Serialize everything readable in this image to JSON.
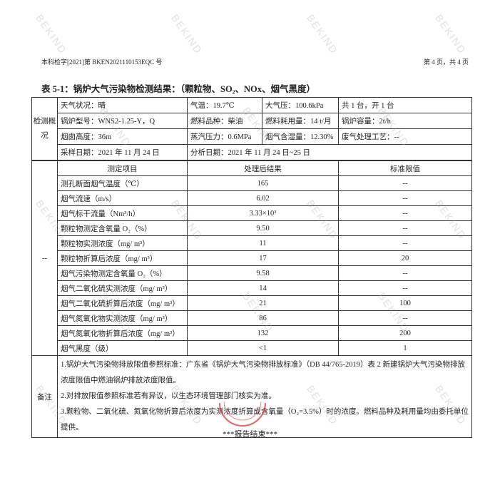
{
  "header": {
    "report_no": "本科检字[2021]第 BKEN2021110153EQC 号",
    "page": "第 4 页，共 4 页"
  },
  "title": "表 5-1：锅炉大气污染物检测结果：（颗粒物、SO₂、NOx、烟气黑度）",
  "overview": {
    "label": "检测概况",
    "rows": [
      [
        "天气状况：晴",
        "气温：19.7℃",
        "大气压：100.6kPa",
        "共 1 台，开 1 台"
      ],
      [
        "锅炉型号：WNS2-1.25-Y，Q",
        "燃料品种：柴油",
        "燃料耗用量：14 t/月",
        "锅炉容量：2t/h"
      ],
      [
        "烟囱高度：36m",
        "蒸汽压力：0.6MPa",
        "烟气含湿量：12.30%",
        "废气处理工艺：--"
      ]
    ],
    "sampling_date": "采样日期：2021 年 11 月 24 日",
    "analysis_date": "分析日期：2021 年 11 月 24 日~25 日"
  },
  "results": {
    "side_label": "--",
    "headers": [
      "测定项目",
      "处理后结果",
      "标准限值"
    ],
    "rows": [
      [
        "测孔断面烟气温度（℃）",
        "165",
        "--"
      ],
      [
        "烟气流速（m/s）",
        "6.02",
        "--"
      ],
      [
        "烟气标干流量（Nm³/h）",
        "3.33×10³",
        "--"
      ],
      [
        "颗粒物测定含氧量 O₂（%）",
        "9.50",
        "--"
      ],
      [
        "颗粒物实测浓度（mg/ m³）",
        "11",
        "--"
      ],
      [
        "颗粒物折算后浓度（mg/ m³）",
        "17",
        "20"
      ],
      [
        "烟气污染物测定含氧量 O₂（%）",
        "9.58",
        "--"
      ],
      [
        "烟气二氧化硫实测浓度（mg/ m³）",
        "14",
        "--"
      ],
      [
        "烟气二氧化硫折算后浓度（mg/ m³）",
        "21",
        "100"
      ],
      [
        "烟气氮氧化物实测浓度（mg/ m³）",
        "86",
        "--"
      ],
      [
        "烟气氮氧化物折算后浓度（mg/ m³）",
        "132",
        "200"
      ],
      [
        "烟气黑度（级）",
        "<1",
        "1"
      ]
    ]
  },
  "remarks": {
    "label": "备注",
    "items": [
      "1.锅炉大气污染物排放限值参照标准：广东省《锅炉大气污染物排放标准》（DB 44/765-2019）表 2 新建锅炉大气污染物排放浓度限值中燃油锅炉排放浓度限值。",
      "2.对排放限值参照标准若有异议，以生态环境管理部门核实为准。",
      "3.颗粒物、二氧化硫、氮氧化物折算后浓度为实测浓度折算成含氧量（O₂=3.5%）时的浓度。燃料品种及耗用量均由委托单位提供。"
    ]
  },
  "footer": "***报告结束***",
  "watermark": "BEKIND",
  "stamp_color": "#e0303a"
}
